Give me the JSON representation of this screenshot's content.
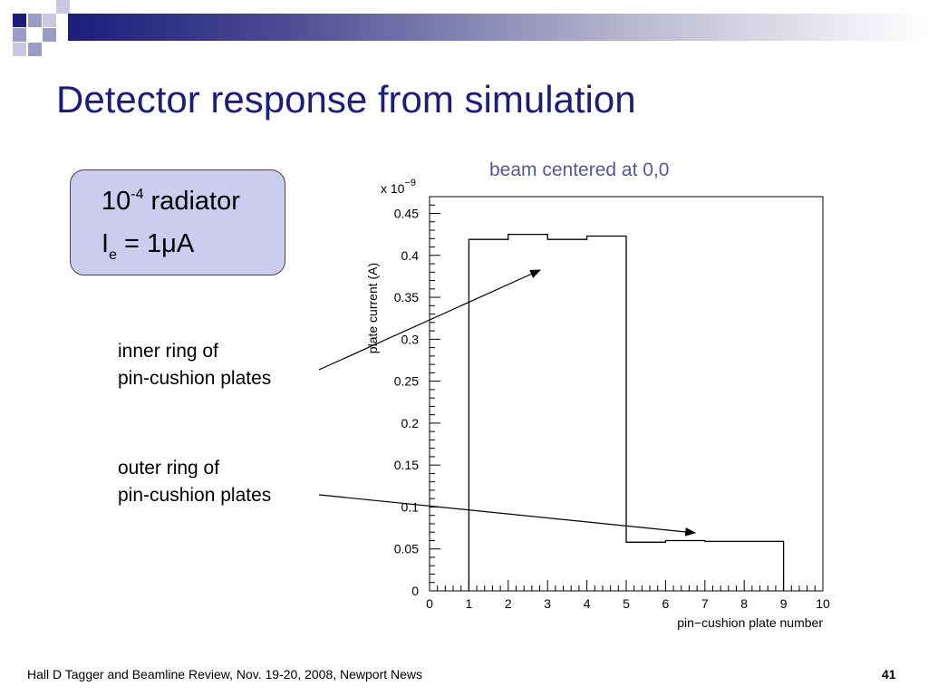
{
  "slide": {
    "title": "Detector response from simulation",
    "footer": "Hall D Tagger and Beamline Review, Nov. 19-20, 2008, Newport News",
    "page_number": "41"
  },
  "callout": {
    "radiator_value": "10",
    "radiator_exponent": "-4",
    "radiator_word": " radiator",
    "current_symbol": "I",
    "current_subscript": "e",
    "current_value": " = 1",
    "current_micro": "μ",
    "current_unit": "A"
  },
  "annotations": {
    "inner_line1": "inner ring of",
    "inner_line2": "pin-cushion plates",
    "outer_line1": "outer ring of",
    "outer_line2": "pin-cushion plates"
  },
  "colors": {
    "title": "#1c1c7a",
    "callout_bg": "#ccccee",
    "beam_text": "#555599"
  },
  "chart_data": {
    "type": "bar",
    "title": "beam centered at 0,0",
    "xlabel": "pin−cushion plate number",
    "ylabel": "plate current (A)",
    "y_multiplier": "x 10",
    "y_multiplier_exp": "−9",
    "xlim": [
      0,
      10
    ],
    "ylim": [
      0,
      0.47
    ],
    "x_ticks": [
      "0",
      "1",
      "2",
      "3",
      "4",
      "5",
      "6",
      "7",
      "8",
      "9",
      "10"
    ],
    "y_ticks": [
      "0",
      "0.05",
      "0.1",
      "0.15",
      "0.2",
      "0.25",
      "0.3",
      "0.35",
      "0.4",
      "0.45"
    ],
    "bin_edges": [
      1,
      2,
      3,
      4,
      5,
      6,
      7,
      8,
      9
    ],
    "values": [
      0.419,
      0.425,
      0.419,
      0.423,
      0.058,
      0.06,
      0.059,
      0.059
    ],
    "grid": false,
    "legend": "none"
  }
}
